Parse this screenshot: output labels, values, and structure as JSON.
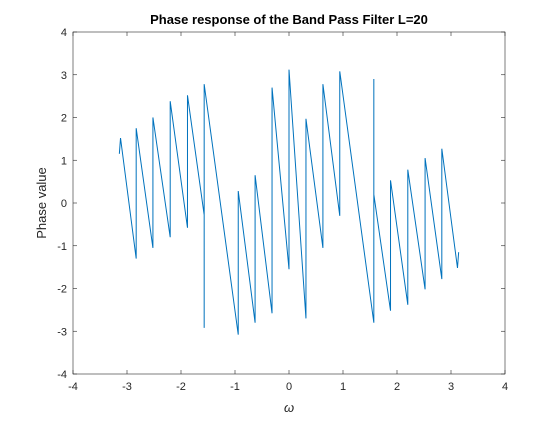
{
  "chart_data": {
    "type": "line",
    "title": "Phase response of the Band Pass Filter L=20",
    "xlabel": "ω",
    "ylabel": "Phase value",
    "xlim": [
      -4,
      4
    ],
    "ylim": [
      -4,
      4
    ],
    "xticks": [
      -4,
      -3,
      -2,
      -1,
      0,
      1,
      2,
      3,
      4
    ],
    "yticks": [
      -4,
      -3,
      -2,
      -1,
      0,
      1,
      2,
      3,
      4
    ],
    "grid": false,
    "line_color": "#0072BD",
    "series": [
      {
        "x": [
          -3.1416,
          -3.12,
          -3.12,
          -2.83,
          -2.83,
          -2.52,
          -2.52,
          -2.2,
          -2.2,
          -1.88,
          -1.88,
          -1.571,
          -1.571,
          -1.571,
          -0.94,
          -0.94,
          -0.628,
          -0.628,
          -0.314,
          -0.314,
          0.0,
          0.0,
          0.314,
          0.314,
          0.628,
          0.628,
          0.94,
          0.94,
          1.571,
          1.571,
          1.571,
          1.88,
          1.88,
          2.2,
          2.2,
          2.52,
          2.52,
          2.83,
          2.83,
          3.12,
          3.12,
          3.1416
        ],
        "y": [
          1.15,
          1.52,
          1.52,
          -1.3,
          1.75,
          -1.05,
          2.0,
          -0.8,
          2.38,
          -0.58,
          2.52,
          -0.28,
          -2.92,
          2.78,
          -3.08,
          0.28,
          -2.8,
          0.65,
          -2.58,
          2.7,
          -1.55,
          3.12,
          -2.7,
          1.97,
          -1.05,
          2.78,
          -0.3,
          3.08,
          -2.8,
          2.9,
          0.2,
          -2.52,
          0.53,
          -2.38,
          0.78,
          -2.02,
          1.05,
          -1.78,
          1.27,
          -1.52,
          -1.52,
          -1.15
        ]
      }
    ]
  }
}
